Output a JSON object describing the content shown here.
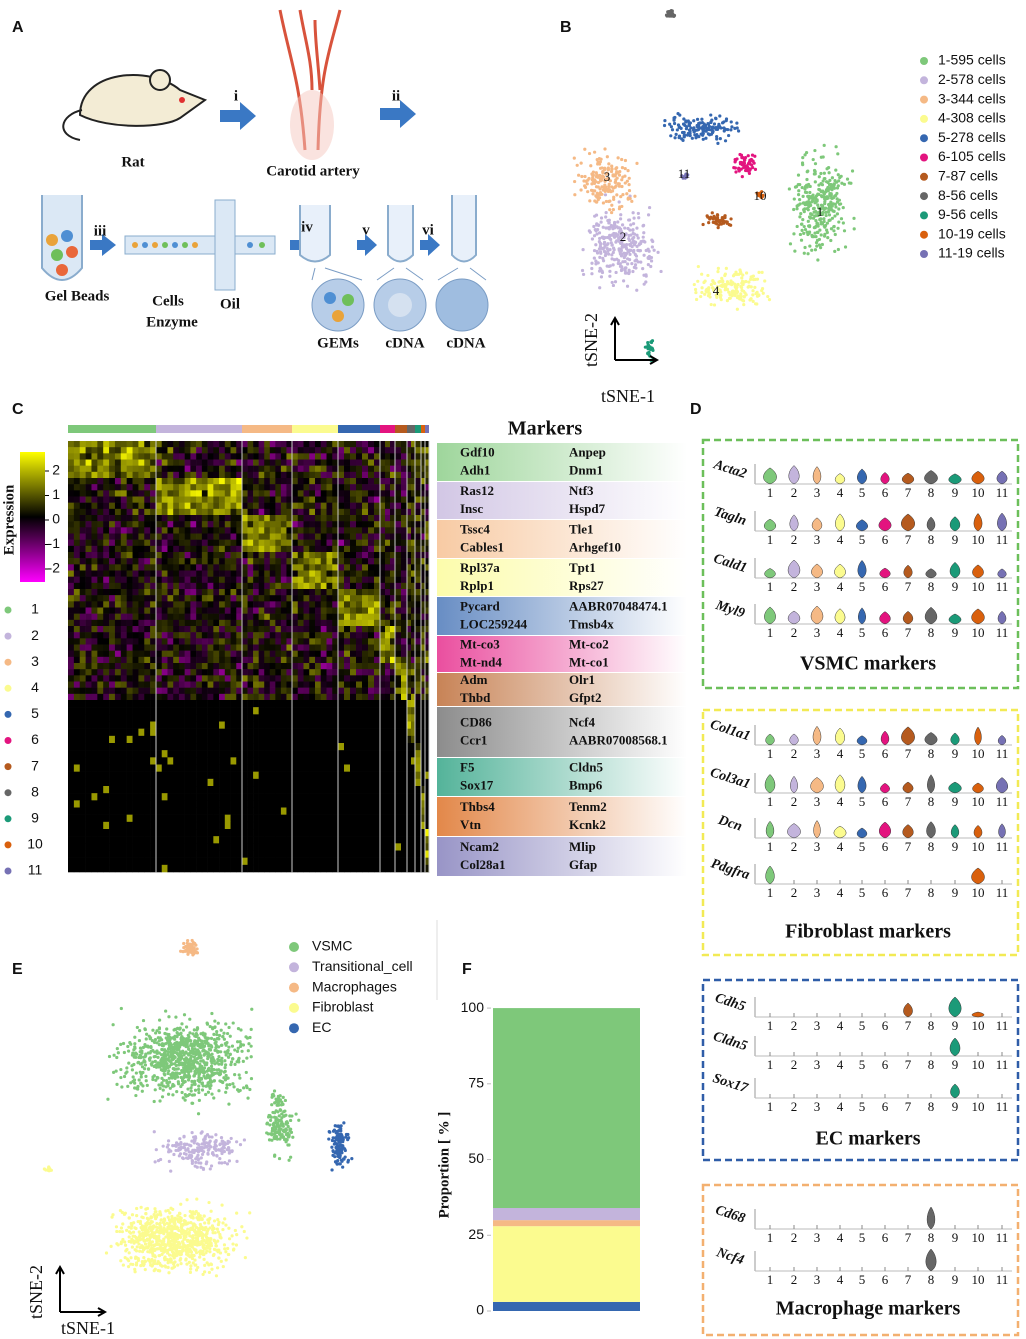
{
  "panel_labels": [
    "A",
    "B",
    "C",
    "D",
    "E",
    "F"
  ],
  "panel_a": {
    "steps": [
      "i",
      "ii",
      "iii",
      "iv",
      "v",
      "vi"
    ],
    "labels": {
      "rat": "Rat",
      "artery": "Carotid artery",
      "gel_beads": "Gel Beads",
      "cells": "Cells",
      "enzyme": "Enzyme",
      "oil": "Oil",
      "gems": "GEMs",
      "cdna_1": "cDNA",
      "cdna_2": "cDNA"
    }
  },
  "panel_b": {
    "legend": [
      {
        "label": "1-595  cells",
        "color": "#7ec87a"
      },
      {
        "label": "2-578  cells",
        "color": "#c3b4dc"
      },
      {
        "label": "3-344  cells",
        "color": "#f5b985"
      },
      {
        "label": "4-308  cells",
        "color": "#fbfb8f"
      },
      {
        "label": "5-278  cells",
        "color": "#3567b0"
      },
      {
        "label": "6-105  cells",
        "color": "#e3147f"
      },
      {
        "label": "7-87  cells",
        "color": "#b55a1e"
      },
      {
        "label": "8-56  cells",
        "color": "#666666"
      },
      {
        "label": "9-56  cells",
        "color": "#1b9a78"
      },
      {
        "label": "10-19  cells",
        "color": "#d9600d"
      },
      {
        "label": "11-19  cells",
        "color": "#7671b4"
      }
    ],
    "cluster_labels": [
      "1",
      "2",
      "3",
      "4",
      "10",
      "11"
    ],
    "x_label": "tSNE-1",
    "y_label": "tSNE-2"
  },
  "panel_c": {
    "title": "Markers",
    "colorbar_label": "Expression",
    "colorbar_ticks": [
      2,
      1,
      0,
      -1,
      -2
    ],
    "clusters": [
      "1",
      "2",
      "3",
      "4",
      "5",
      "6",
      "7",
      "8",
      "9",
      "10",
      "11"
    ],
    "markers": [
      {
        "left": [
          "Gdf10",
          "Adh1"
        ],
        "right": [
          "Anpep",
          "Dnm1"
        ]
      },
      {
        "left": [
          "Ras12",
          "Insc"
        ],
        "right": [
          "Ntf3",
          "Hspd7"
        ]
      },
      {
        "left": [
          "Tssc4",
          "Cables1"
        ],
        "right": [
          "Tle1",
          "Arhgef10"
        ]
      },
      {
        "left": [
          "Rpl37a",
          "Rplp1"
        ],
        "right": [
          "Tpt1",
          "Rps27"
        ]
      },
      {
        "left": [
          "Pycard",
          "LOC259244"
        ],
        "right": [
          "AABR07048474.1",
          "Tmsb4x"
        ]
      },
      {
        "left": [
          "Mt-co3",
          "Mt-nd4"
        ],
        "right": [
          "Mt-co2",
          "Mt-co1"
        ]
      },
      {
        "left": [
          "Adm",
          "Thbd"
        ],
        "right": [
          "Olr1",
          "Gfpt2"
        ]
      },
      {
        "left": [
          "CD86",
          "Ccr1"
        ],
        "right": [
          "Ncf4",
          "AABR07008568.1"
        ]
      },
      {
        "left": [
          "F5",
          "Sox17"
        ],
        "right": [
          "Cldn5",
          "Bmp6"
        ]
      },
      {
        "left": [
          "Thbs4",
          "Vtn"
        ],
        "right": [
          "Tenm2",
          "Kcnk2"
        ]
      },
      {
        "left": [
          "Ncam2",
          "Col28a1"
        ],
        "right": [
          "Mlip",
          "Gfap"
        ]
      }
    ]
  },
  "panel_d": {
    "cluster_ticks": [
      "1",
      "2",
      "3",
      "4",
      "5",
      "6",
      "7",
      "8",
      "9",
      "10",
      "11"
    ],
    "groups": [
      {
        "title": "VSMC markers",
        "color": "#6cbf5a",
        "genes": [
          "Acta2",
          "Tagln",
          "Cald1",
          "Myl9"
        ]
      },
      {
        "title": "Fibroblast markers",
        "color": "#f2ea55",
        "genes": [
          "Col1a1",
          "Col3a1",
          "Dcn",
          "Pdgfra"
        ]
      },
      {
        "title": "EC markers",
        "color": "#2f5da8",
        "genes": [
          "Cdh5",
          "Cldn5",
          "Sox17"
        ]
      },
      {
        "title": "Macrophage markers",
        "color": "#f3b070",
        "genes": [
          "Cd68",
          "Ncf4"
        ]
      }
    ]
  },
  "panel_e": {
    "legend": [
      {
        "label": "VSMC",
        "color": "#7ec87a"
      },
      {
        "label": "Transitional_cell",
        "color": "#c3b4dc"
      },
      {
        "label": "Macrophages",
        "color": "#f5b985"
      },
      {
        "label": "Fibroblast",
        "color": "#fbfb8f"
      },
      {
        "label": "EC",
        "color": "#3567b0"
      }
    ],
    "x_label": "tSNE-1",
    "y_label": "tSNE-2"
  },
  "chart_data": {
    "type": "bar",
    "stacked": true,
    "y_label": "Proportion [ % ]",
    "series": [
      {
        "color": "#3567b0",
        "values": [
          3
        ]
      },
      {
        "color": "#fbfb8f",
        "values": [
          25
        ]
      },
      {
        "color": "#f5b985",
        "values": [
          2
        ]
      },
      {
        "color": "#c3b4dc",
        "values": [
          4
        ]
      },
      {
        "color": "#7ec87a",
        "values": [
          66
        ]
      }
    ],
    "ylim": [
      0,
      103
    ],
    "yticks": [
      0,
      25,
      50,
      75,
      100
    ]
  }
}
